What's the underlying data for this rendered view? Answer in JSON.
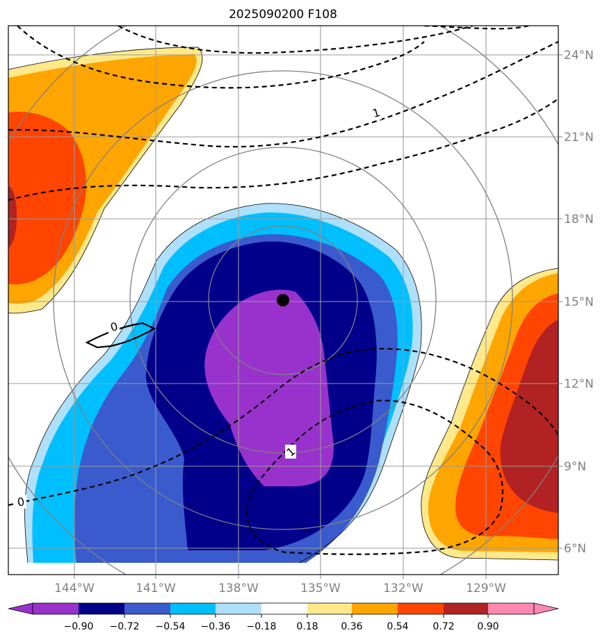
{
  "title": "2025090200 F108",
  "colors": {
    "purple": "#9932cc",
    "navy": "#00008b",
    "royal": "#3a5bcd",
    "deepsky": "#00bfff",
    "lightblue": "#afe0fb",
    "white": "#ffffff",
    "khaki": "#ffe98a",
    "orange": "#ffa500",
    "orangered": "#ff4500",
    "firebrick": "#b22222",
    "pink": "#ff88b0"
  },
  "chart_data": {
    "type": "heatmap",
    "xlim": [
      -146.0,
      -126.5
    ],
    "ylim": [
      5.0,
      25.0
    ],
    "x_ticks": [
      {
        "value": -144,
        "label": "144°W"
      },
      {
        "value": -141,
        "label": "141°W"
      },
      {
        "value": -138,
        "label": "138°W"
      },
      {
        "value": -135,
        "label": "135°W"
      },
      {
        "value": -132,
        "label": "132°W"
      },
      {
        "value": -129,
        "label": "129°W"
      }
    ],
    "y_ticks": [
      {
        "value": 6,
        "label": "6°N"
      },
      {
        "value": 9,
        "label": "9°N"
      },
      {
        "value": 12,
        "label": "12°N"
      },
      {
        "value": 15,
        "label": "15°N"
      },
      {
        "value": 18,
        "label": "18°N"
      },
      {
        "value": 21,
        "label": "21°N"
      },
      {
        "value": 24,
        "label": "24°N"
      }
    ],
    "grid": true,
    "center": {
      "lon": -136.0,
      "lat": 15.1
    },
    "colorbar": {
      "position": "bottom",
      "extend": "both",
      "levels": [
        "−0.90",
        "−0.72",
        "−0.54",
        "−0.36",
        "−0.18",
        "0.18",
        "0.36",
        "0.54",
        "0.72",
        "0.90"
      ]
    },
    "contour_labels": [
      {
        "text": "1",
        "lon": -132.7,
        "lat": 21.8
      },
      {
        "text": "0",
        "lon": -142.5,
        "lat": 14.1
      },
      {
        "text": "0",
        "lon": -145.5,
        "lat": 7.7
      },
      {
        "text": "1",
        "lon": -134.6,
        "lat": 9.5
      }
    ]
  }
}
